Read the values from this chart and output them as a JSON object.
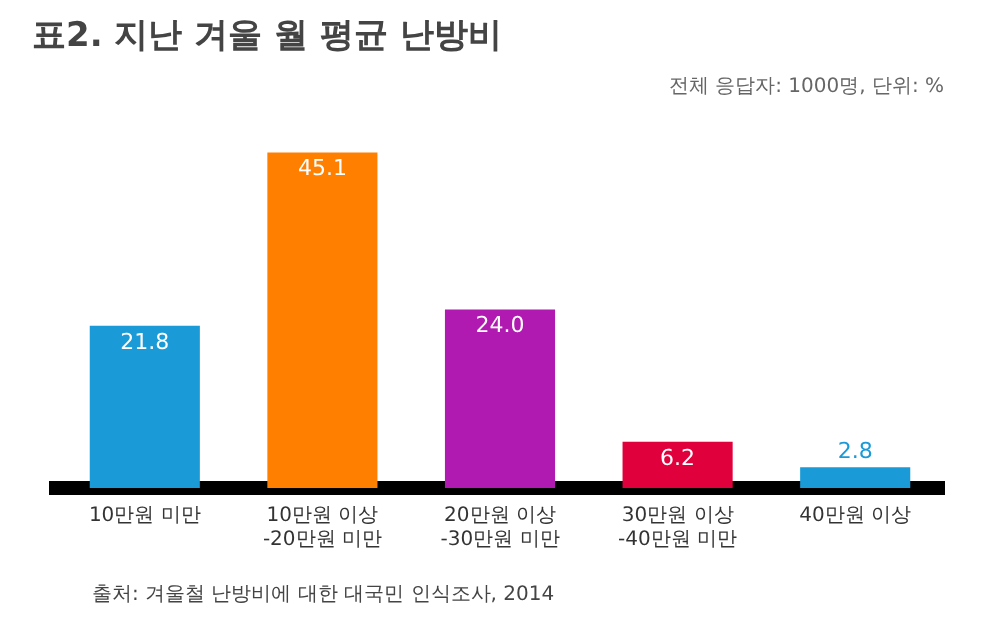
{
  "chart_data": {
    "type": "bar",
    "title": "표2. 지난 겨울 월 평균 난방비",
    "subtitle": "전체 응답자: 1000명, 단위: %",
    "categories": [
      "10만원 미만",
      "10만원 이상\n-20만원 미만",
      "20만원 이상\n-30만원 미만",
      "30만원 이상\n-40만원 미만",
      "40만원 이상"
    ],
    "values": [
      21.8,
      45.1,
      24.0,
      6.2,
      2.8
    ],
    "colors": [
      "#1a9ad6",
      "#ff8000",
      "#b01ab0",
      "#e0003c",
      "#1a9ad6"
    ],
    "value_labels": [
      "21.8",
      "45.1",
      "24.0",
      "6.2",
      "2.8"
    ],
    "grid": false,
    "legend": false,
    "annotations": [
      "출처: 겨울철 난방비에 대한 대국민 인식조사, 2014"
    ]
  }
}
